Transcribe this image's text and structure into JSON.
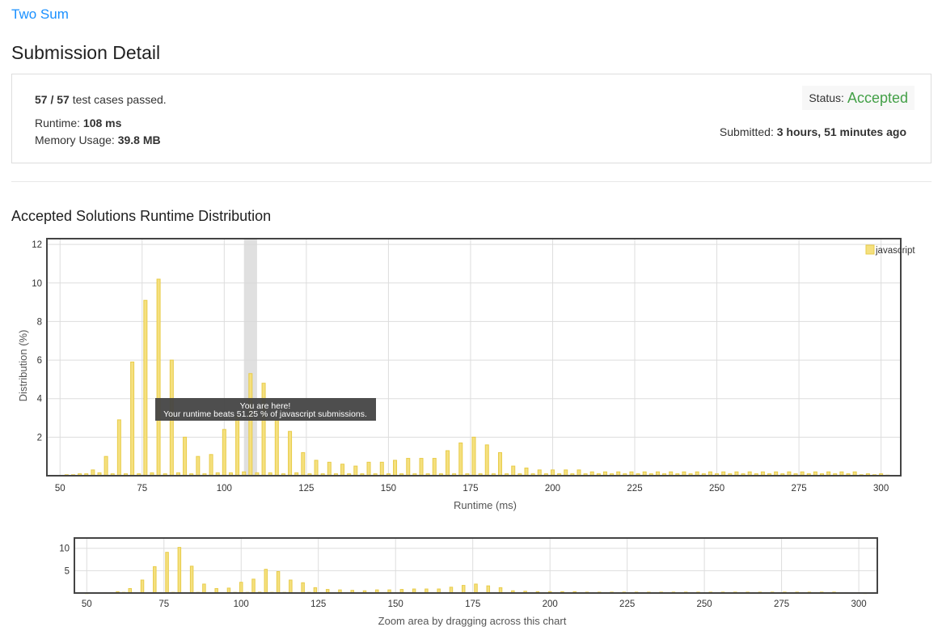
{
  "problem": {
    "title": "Two Sum"
  },
  "page_title": "Submission Detail",
  "summary": {
    "passed": "57 / 57",
    "passed_suffix": "test cases passed.",
    "runtime_label": "Runtime:",
    "runtime_value": "108 ms",
    "memory_label": "Memory Usage:",
    "memory_value": "39.8 MB",
    "status_label": "Status:",
    "status_value": "Accepted",
    "submitted_label": "Submitted:",
    "submitted_value": "3 hours, 51 minutes ago"
  },
  "colors": {
    "accent_link": "#1a90ff",
    "accepted": "#43a047",
    "bar_fill": "#f5e07e",
    "bar_stroke": "#e8cc4a"
  },
  "section_title": "Accepted Solutions Runtime Distribution",
  "tooltip": {
    "line1": "You are here!",
    "line2": "Your runtime beats 51.25 % of javascript submissions."
  },
  "zoom_hint": "Zoom area by dragging across this chart",
  "chart_data": [
    {
      "type": "bar",
      "xlabel": "Runtime (ms)",
      "ylabel": "Distribution (%)",
      "xlim": [
        46,
        306
      ],
      "ylim": [
        0,
        12.3
      ],
      "xticks": [
        50,
        75,
        100,
        125,
        150,
        175,
        200,
        225,
        250,
        275,
        300
      ],
      "yticks": [
        2,
        4,
        6,
        8,
        10,
        12
      ],
      "grid": true,
      "legend_position": "top-right",
      "highlight_x": 108,
      "series": [
        {
          "name": "javascript",
          "x": [
            52,
            56,
            60,
            64,
            68,
            72,
            76,
            80,
            84,
            88,
            92,
            96,
            100,
            104,
            108,
            112,
            116,
            120,
            124,
            128,
            132,
            136,
            140,
            144,
            148,
            152,
            156,
            160,
            164,
            168,
            172,
            176,
            180,
            184,
            188,
            192,
            196,
            200,
            204,
            208,
            212,
            216,
            220,
            224,
            228,
            232,
            236,
            240,
            244,
            248,
            252,
            256,
            260,
            264,
            268,
            272,
            276,
            280,
            284,
            288,
            292,
            296,
            300
          ],
          "values": [
            0.05,
            0.1,
            0.3,
            1.0,
            2.9,
            5.9,
            9.1,
            10.2,
            6.0,
            2.0,
            1.0,
            1.1,
            2.4,
            3.1,
            5.3,
            4.8,
            2.9,
            2.3,
            1.2,
            0.8,
            0.7,
            0.6,
            0.5,
            0.7,
            0.7,
            0.8,
            0.9,
            0.9,
            0.9,
            1.3,
            1.7,
            2.0,
            1.6,
            1.2,
            0.5,
            0.4,
            0.3,
            0.3,
            0.3,
            0.3,
            0.2,
            0.2,
            0.2,
            0.2,
            0.2,
            0.2,
            0.2,
            0.2,
            0.2,
            0.2,
            0.2,
            0.2,
            0.2,
            0.2,
            0.2,
            0.2,
            0.2,
            0.2,
            0.2,
            0.2,
            0.2,
            0.1,
            0.1
          ]
        },
        {
          "name": "",
          "x": [
            50,
            54,
            58,
            62,
            66,
            70,
            74,
            78,
            82,
            86,
            90,
            94,
            98,
            102,
            106,
            110,
            114,
            118,
            122,
            126,
            130,
            134,
            138,
            142,
            146,
            150,
            154,
            158,
            162,
            166,
            170,
            174,
            178,
            182,
            186,
            190,
            194,
            198,
            202,
            206,
            210,
            214,
            218,
            222,
            226,
            230,
            234,
            238,
            242,
            246,
            250,
            254,
            258,
            262,
            266,
            270,
            274,
            278,
            282,
            286,
            290,
            294,
            298,
            302
          ],
          "values": [
            0.02,
            0.05,
            0.1,
            0.15,
            0.1,
            0.1,
            0.1,
            0.15,
            0.1,
            0.15,
            0.1,
            0.1,
            0.15,
            0.15,
            0.2,
            0.15,
            0.15,
            0.1,
            0.15,
            0.1,
            0.1,
            0.1,
            0.1,
            0.1,
            0.1,
            0.1,
            0.1,
            0.1,
            0.1,
            0.1,
            0.1,
            0.1,
            0.1,
            0.1,
            0.1,
            0.1,
            0.1,
            0.1,
            0.1,
            0.1,
            0.1,
            0.1,
            0.1,
            0.1,
            0.1,
            0.1,
            0.1,
            0.1,
            0.1,
            0.1,
            0.1,
            0.1,
            0.1,
            0.1,
            0.1,
            0.1,
            0.1,
            0.1,
            0.1,
            0.1,
            0.1,
            0.05,
            0.05,
            0.03
          ]
        }
      ]
    },
    {
      "type": "bar",
      "xlim": [
        46,
        306
      ],
      "ylim": [
        0,
        12.3
      ],
      "xticks": [
        50,
        75,
        100,
        125,
        150,
        175,
        200,
        225,
        250,
        275,
        300
      ],
      "yticks": [
        5,
        10
      ],
      "grid": true,
      "series_source": "same as main chart"
    }
  ]
}
